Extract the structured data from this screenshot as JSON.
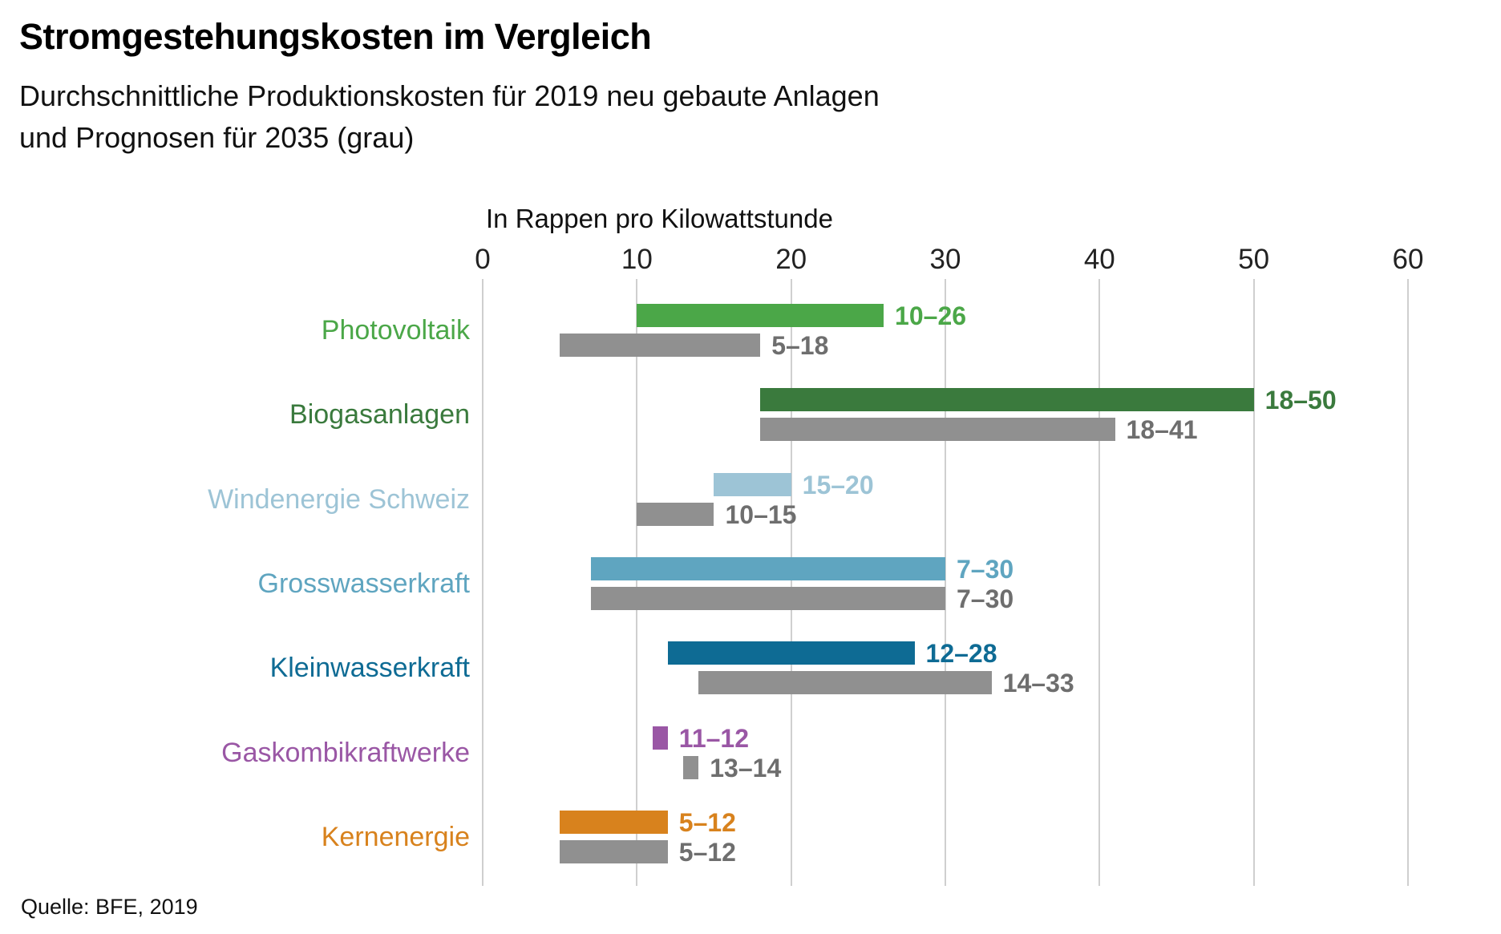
{
  "header": {
    "title": "Stromgestehungskosten im Vergleich",
    "subtitle_lines": [
      "Durchschnittliche Produktionskosten für 2019 neu gebaute Anlagen",
      "und Prognosen für 2035 (grau)"
    ]
  },
  "footer": {
    "source": "Quelle: BFE, 2019"
  },
  "colors": {
    "forecast_gray_bar": "#909090",
    "forecast_gray_text": "#6e6e6e",
    "gridline": "#cfcfcf",
    "text": "#111111"
  },
  "chart_data": {
    "type": "bar",
    "orientation": "horizontal",
    "title": "Stromgestehungskosten im Vergleich",
    "subtitle": "Durchschnittliche Produktionskosten für 2019 neu gebaute Anlagen und Prognosen für 2035 (grau)",
    "axis_label": "In Rappen pro Kilowattstunde",
    "xlim": [
      0,
      60
    ],
    "x_ticks": [
      0,
      10,
      20,
      30,
      40,
      50,
      60
    ],
    "grid": true,
    "series_names": [
      "2019 neu gebaute Anlagen (farbig)",
      "Prognose 2035 (grau)"
    ],
    "rows": [
      {
        "label": "Photovoltaik",
        "color": "#4ba748",
        "range_2019": [
          10,
          26
        ],
        "label_2019": "10–26",
        "range_2035": [
          5,
          18
        ],
        "label_2035": "5–18"
      },
      {
        "label": "Biogasanlagen",
        "color": "#3a7a3d",
        "range_2019": [
          18,
          50
        ],
        "label_2019": "18–50",
        "range_2035": [
          18,
          41
        ],
        "label_2035": "18–41"
      },
      {
        "label": "Windenergie Schweiz",
        "color": "#9dc4d6",
        "range_2019": [
          15,
          20
        ],
        "label_2019": "15–20",
        "range_2035": [
          10,
          15
        ],
        "label_2035": "10–15"
      },
      {
        "label": "Grosswasserkraft",
        "color": "#5fa5c0",
        "range_2019": [
          7,
          30
        ],
        "label_2019": "7–30",
        "range_2035": [
          7,
          30
        ],
        "label_2035": "7–30"
      },
      {
        "label": "Kleinwasserkraft",
        "color": "#0e6b94",
        "range_2019": [
          12,
          28
        ],
        "label_2019": "12–28",
        "range_2035": [
          14,
          33
        ],
        "label_2035": "14–33"
      },
      {
        "label": "Gaskombikraftwerke",
        "color": "#9a57a5",
        "range_2019": [
          11,
          12
        ],
        "label_2019": "11–12",
        "range_2035": [
          13,
          14
        ],
        "label_2035": "13–14"
      },
      {
        "label": "Kernenergie",
        "color": "#d8821d",
        "range_2019": [
          5,
          12
        ],
        "label_2019": "5–12",
        "range_2035": [
          5,
          12
        ],
        "label_2035": "5–12"
      }
    ]
  }
}
